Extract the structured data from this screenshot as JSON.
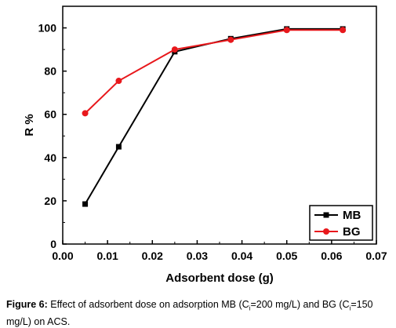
{
  "chart_data": {
    "type": "line",
    "xlabel": "Adsorbent dose (g)",
    "ylabel": "R %",
    "xlim": [
      0.0,
      0.07
    ],
    "ylim": [
      0,
      110
    ],
    "xticks": [
      "0.00",
      "0.01",
      "0.02",
      "0.03",
      "0.04",
      "0.05",
      "0.06",
      "0.07"
    ],
    "yticks": [
      "0",
      "20",
      "40",
      "60",
      "80",
      "100"
    ],
    "grid": false,
    "legend_position": "bottom-right",
    "series": [
      {
        "name": "MB",
        "color": "#000000",
        "marker": "square",
        "x": [
          0.005,
          0.0125,
          0.025,
          0.0375,
          0.05,
          0.0625
        ],
        "y": [
          18.5,
          45,
          89,
          95,
          99.5,
          99.5
        ]
      },
      {
        "name": "BG",
        "color": "#e8181c",
        "marker": "circle",
        "x": [
          0.005,
          0.0125,
          0.025,
          0.0375,
          0.05,
          0.0625
        ],
        "y": [
          60.5,
          75.5,
          90,
          94.5,
          99,
          99
        ]
      }
    ]
  },
  "caption": {
    "label": "Figure 6:",
    "part1": " Effect of adsorbent dose on adsorption MB (C",
    "sub1": "i",
    "part2": "=200 mg/L) and BG (C",
    "sub2": "i",
    "part3": "=150 mg/L) on ACS."
  }
}
